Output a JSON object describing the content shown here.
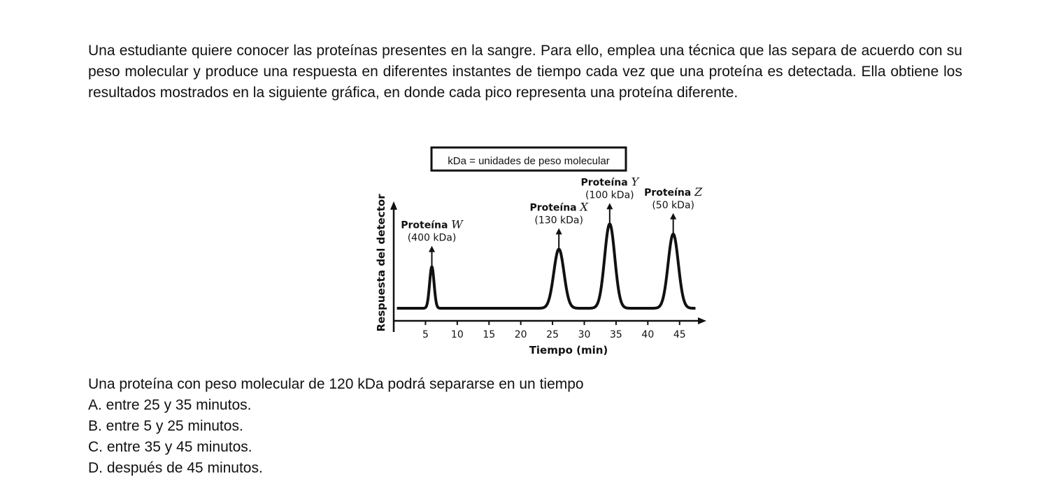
{
  "intro_text": "Una estudiante quiere conocer las proteínas presentes en la sangre. Para ello, emplea una técnica que las separa de acuerdo con su peso molecular y produce una respuesta en diferentes instantes de tiempo cada vez que una proteína es detectada. Ella obtiene los resultados mostrados en la siguiente gráfica, en donde cada pico representa una proteína diferente.",
  "chart_data": {
    "type": "line",
    "legend_box": "kDa = unidades de peso molecular",
    "xlabel": "Tiempo (min)",
    "ylabel": "Respuesta del detector",
    "xlim": [
      0,
      48
    ],
    "ylim": [
      0,
      10
    ],
    "x_ticks": [
      5,
      10,
      15,
      20,
      25,
      30,
      35,
      40,
      45
    ],
    "x_tick_labels": [
      "5",
      "10",
      "15",
      "20",
      "25",
      "30",
      "35",
      "40",
      "45"
    ],
    "baseline": 1.0,
    "peaks": [
      {
        "prefix": "Proteína",
        "letter": "W",
        "mass_label": "(400 kDa)",
        "x": 6,
        "height": 4.3,
        "width": 0.35
      },
      {
        "prefix": "Proteína",
        "letter": "X",
        "mass_label": "(130 kDa)",
        "x": 26,
        "height": 5.7,
        "width": 0.8
      },
      {
        "prefix": "Proteína",
        "letter": "Y",
        "mass_label": "(100 kDa)",
        "x": 34,
        "height": 7.7,
        "width": 0.8
      },
      {
        "prefix": "Proteína",
        "letter": "Z",
        "mass_label": "(50 kDa)",
        "x": 44,
        "height": 6.9,
        "width": 0.8
      }
    ]
  },
  "question": "Una proteína con peso molecular de 120 kDa podrá separarse en un tiempo",
  "options": [
    "A. entre 25 y 35 minutos.",
    "B. entre 5 y 25 minutos.",
    "C. entre 35 y 45 minutos.",
    "D. después de 45 minutos."
  ]
}
